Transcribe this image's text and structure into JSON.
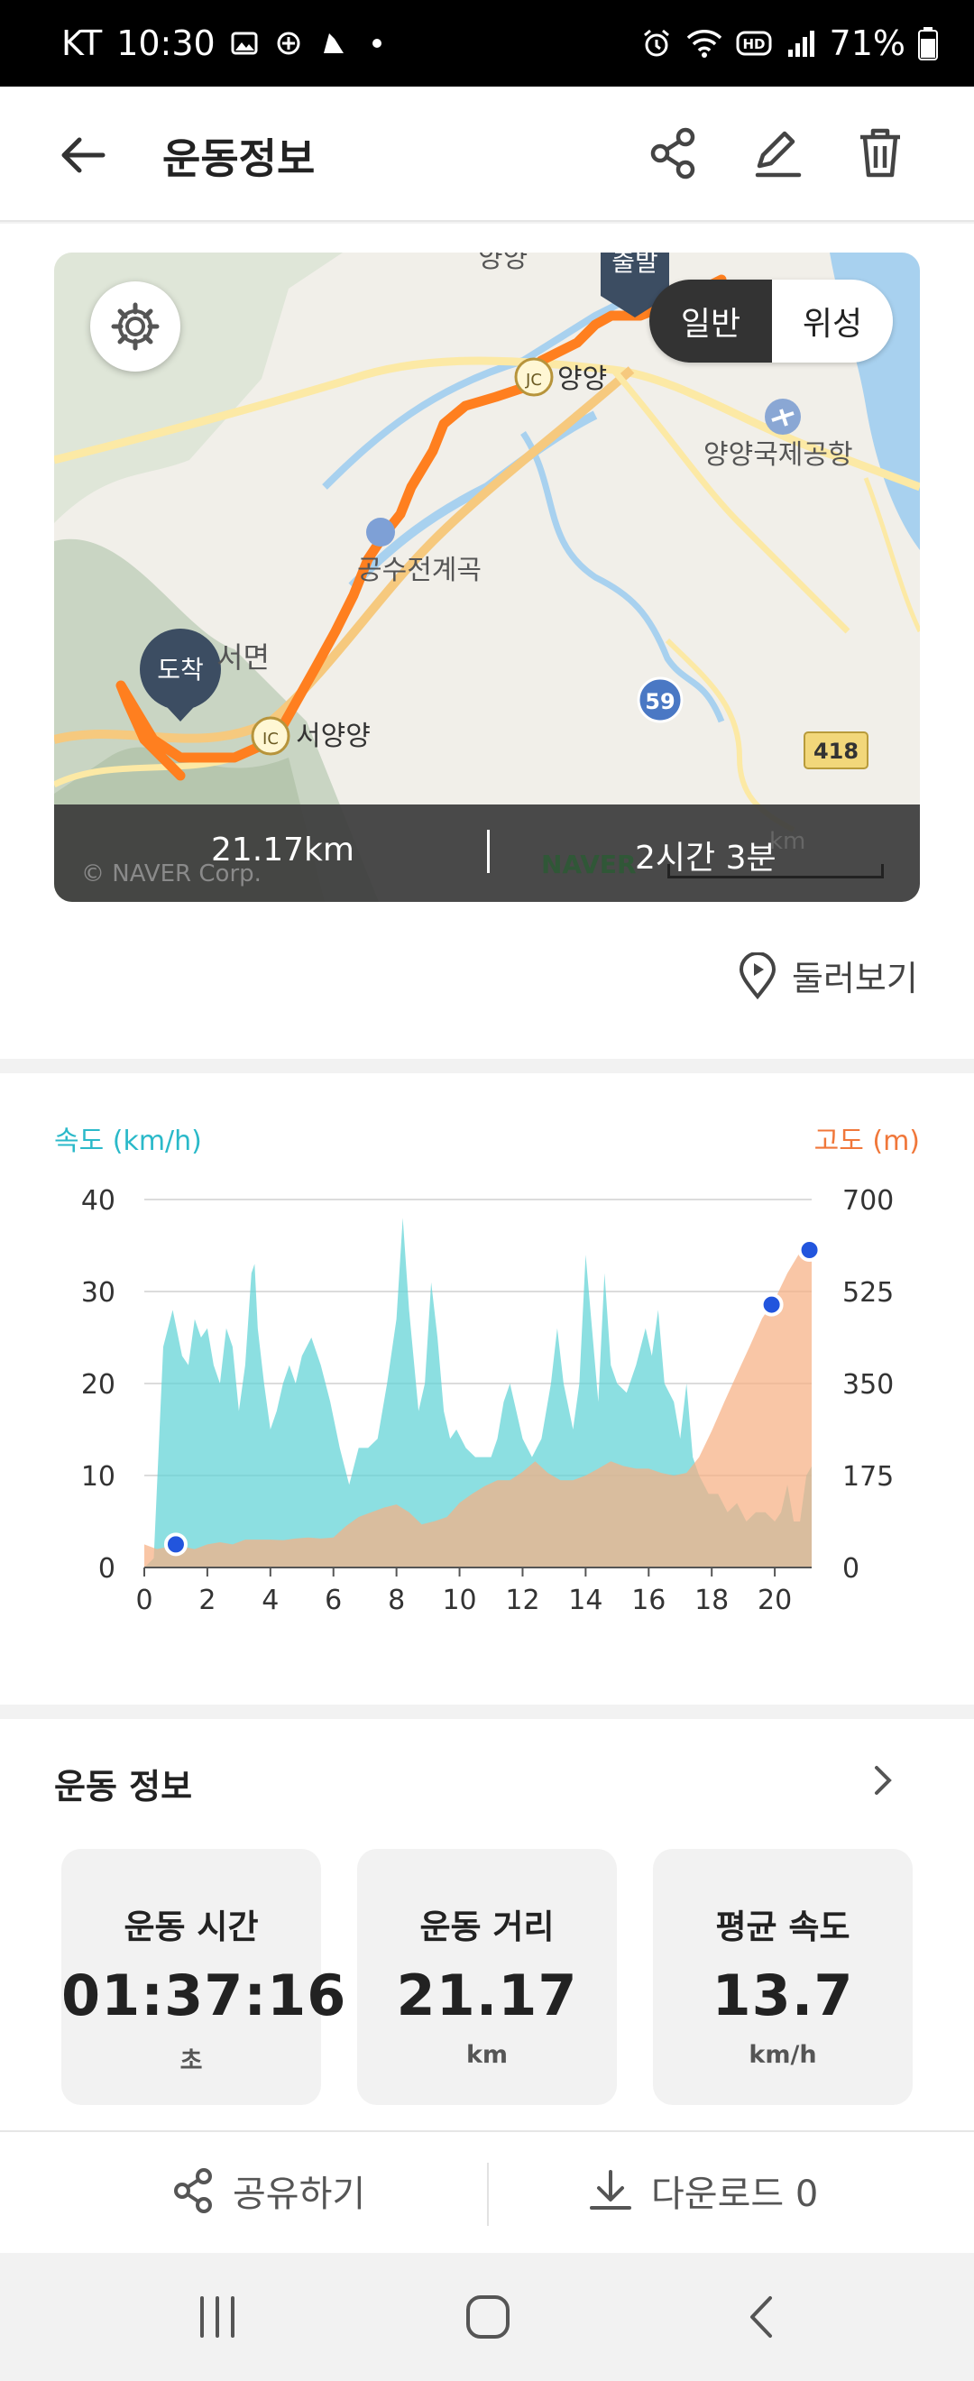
{
  "status": {
    "carrier": "KT",
    "time": "10:30",
    "battery": "71%"
  },
  "header": {
    "title": "운동정보"
  },
  "map": {
    "toggle": {
      "active": "일반",
      "inactive": "위성"
    },
    "labels": {
      "start": "출발",
      "end": "도착",
      "yangyang": "양양",
      "jc": "JC",
      "airport": "양양국제공항",
      "gongsu": "공수전계곡",
      "seomyeon": "서면",
      "ic": "IC",
      "seoyangyang": "서양양",
      "route59": "59",
      "route418": "418",
      "top": "양양"
    },
    "summary": {
      "distance": "21.17km",
      "duration": "2시간 3분"
    },
    "copyright": "© NAVER Corp.",
    "watermark": "NAVER",
    "scale_unit": "km"
  },
  "look_around": "둘러보기",
  "chart_data": {
    "type": "area",
    "xlabel": "",
    "x_ticks": [
      "0",
      "2",
      "4",
      "6",
      "8",
      "10",
      "12",
      "14",
      "16",
      "18",
      "20"
    ],
    "y_left": {
      "label": "속도 (km/h)",
      "ticks": [
        "40",
        "30",
        "20",
        "10",
        "0"
      ],
      "range": [
        0,
        40
      ]
    },
    "y_right": {
      "label": "고도 (m)",
      "ticks": [
        "700",
        "525",
        "350",
        "175",
        "0"
      ],
      "range": [
        0,
        700
      ]
    },
    "xlim": [
      0,
      21.17
    ],
    "grid": true,
    "series": [
      {
        "name": "속도 (km/h)",
        "axis": "left",
        "color": "#5fd3d6",
        "points": [
          [
            0,
            0
          ],
          [
            0.3,
            1
          ],
          [
            0.6,
            24
          ],
          [
            0.9,
            28
          ],
          [
            1.2,
            23
          ],
          [
            1.4,
            22
          ],
          [
            1.6,
            27
          ],
          [
            1.8,
            25
          ],
          [
            2,
            26
          ],
          [
            2.2,
            22
          ],
          [
            2.4,
            20
          ],
          [
            2.6,
            26
          ],
          [
            2.8,
            24
          ],
          [
            3,
            17
          ],
          [
            3.2,
            22
          ],
          [
            3.4,
            32
          ],
          [
            3.5,
            33
          ],
          [
            3.6,
            26
          ],
          [
            3.8,
            20
          ],
          [
            4,
            15
          ],
          [
            4.2,
            17
          ],
          [
            4.4,
            20
          ],
          [
            4.6,
            22
          ],
          [
            4.8,
            20
          ],
          [
            5,
            23
          ],
          [
            5.3,
            25
          ],
          [
            5.6,
            22
          ],
          [
            5.9,
            18
          ],
          [
            6.2,
            13
          ],
          [
            6.5,
            9
          ],
          [
            6.8,
            13
          ],
          [
            7.1,
            13
          ],
          [
            7.4,
            14
          ],
          [
            7.7,
            20
          ],
          [
            8,
            27
          ],
          [
            8.2,
            38
          ],
          [
            8.4,
            28
          ],
          [
            8.7,
            17
          ],
          [
            8.9,
            20
          ],
          [
            9.1,
            31
          ],
          [
            9.3,
            25
          ],
          [
            9.5,
            17
          ],
          [
            9.7,
            14
          ],
          [
            9.9,
            15
          ],
          [
            10.2,
            13
          ],
          [
            10.5,
            12
          ],
          [
            10.8,
            12
          ],
          [
            11,
            12
          ],
          [
            11.2,
            14
          ],
          [
            11.4,
            18
          ],
          [
            11.6,
            20
          ],
          [
            11.8,
            17
          ],
          [
            12,
            14
          ],
          [
            12.3,
            12
          ],
          [
            12.6,
            14
          ],
          [
            12.9,
            20
          ],
          [
            13.1,
            26
          ],
          [
            13.3,
            20
          ],
          [
            13.6,
            15
          ],
          [
            13.8,
            20
          ],
          [
            14,
            34
          ],
          [
            14.2,
            26
          ],
          [
            14.4,
            18
          ],
          [
            14.6,
            32
          ],
          [
            14.8,
            22
          ],
          [
            15,
            20
          ],
          [
            15.3,
            19
          ],
          [
            15.6,
            22
          ],
          [
            15.9,
            26
          ],
          [
            16.1,
            23
          ],
          [
            16.3,
            28
          ],
          [
            16.5,
            20
          ],
          [
            16.8,
            18
          ],
          [
            17,
            14
          ],
          [
            17.2,
            20
          ],
          [
            17.4,
            12
          ],
          [
            17.6,
            10
          ],
          [
            17.9,
            8
          ],
          [
            18.2,
            8
          ],
          [
            18.5,
            6
          ],
          [
            18.8,
            7
          ],
          [
            19.1,
            5
          ],
          [
            19.4,
            6
          ],
          [
            19.7,
            6
          ],
          [
            20,
            5
          ],
          [
            20.2,
            6
          ],
          [
            20.4,
            9
          ],
          [
            20.6,
            5
          ],
          [
            20.8,
            5
          ],
          [
            21,
            10
          ],
          [
            21.17,
            11
          ]
        ]
      },
      {
        "name": "고도 (m)",
        "axis": "right",
        "color": "#f6b083",
        "points": [
          [
            0,
            44
          ],
          [
            0.4,
            35
          ],
          [
            0.8,
            40
          ],
          [
            1.2,
            40
          ],
          [
            1.6,
            35
          ],
          [
            2,
            44
          ],
          [
            2.4,
            48
          ],
          [
            2.8,
            44
          ],
          [
            3.2,
            53
          ],
          [
            3.6,
            53
          ],
          [
            4,
            53
          ],
          [
            4.4,
            52
          ],
          [
            4.8,
            55
          ],
          [
            5.2,
            57
          ],
          [
            5.6,
            55
          ],
          [
            6,
            57
          ],
          [
            6.4,
            79
          ],
          [
            6.8,
            96
          ],
          [
            7.2,
            105
          ],
          [
            7.6,
            114
          ],
          [
            8,
            120
          ],
          [
            8.4,
            105
          ],
          [
            8.8,
            82
          ],
          [
            9.2,
            88
          ],
          [
            9.6,
            96
          ],
          [
            10,
            123
          ],
          [
            10.4,
            140
          ],
          [
            10.8,
            155
          ],
          [
            11.2,
            166
          ],
          [
            11.6,
            166
          ],
          [
            12,
            182
          ],
          [
            12.4,
            202
          ],
          [
            12.8,
            180
          ],
          [
            13.2,
            166
          ],
          [
            13.6,
            166
          ],
          [
            14,
            175
          ],
          [
            14.4,
            188
          ],
          [
            14.8,
            202
          ],
          [
            15.2,
            193
          ],
          [
            15.6,
            188
          ],
          [
            16,
            188
          ],
          [
            16.4,
            180
          ],
          [
            16.8,
            175
          ],
          [
            17.2,
            180
          ],
          [
            17.6,
            210
          ],
          [
            18,
            260
          ],
          [
            18.4,
            315
          ],
          [
            18.8,
            368
          ],
          [
            19.2,
            420
          ],
          [
            19.6,
            474
          ],
          [
            20,
            510
          ],
          [
            20.4,
            560
          ],
          [
            20.8,
            600
          ],
          [
            21.17,
            620
          ]
        ]
      }
    ],
    "markers": [
      {
        "x": 1.0,
        "y_alt": 44
      },
      {
        "x": 19.9,
        "y_alt": 500
      },
      {
        "x": 21.1,
        "y_alt": 604
      }
    ]
  },
  "exercise": {
    "section_title": "운동 정보",
    "stats": [
      {
        "label": "운동 시간",
        "value": "01:37:16",
        "unit": "초"
      },
      {
        "label": "운동 거리",
        "value": "21.17",
        "unit": "km"
      },
      {
        "label": "평균 속도",
        "value": "13.7",
        "unit": "km/h"
      }
    ]
  },
  "actions": {
    "share": "공유하기",
    "download": "다운로드 0"
  }
}
